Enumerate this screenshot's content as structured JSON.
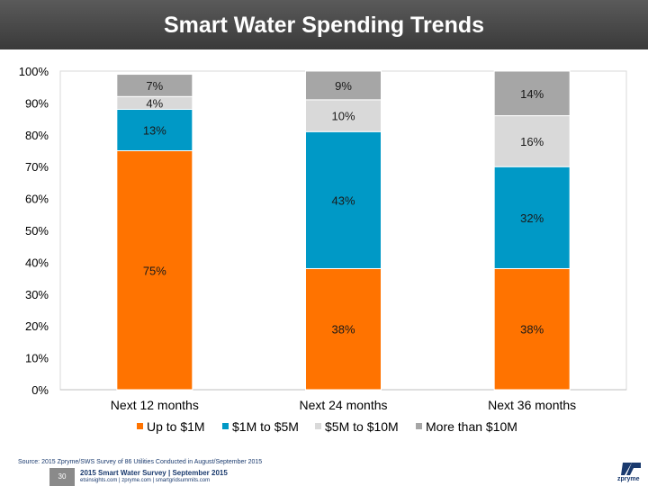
{
  "header": {
    "title": "Smart Water Spending Trends"
  },
  "chart_data": {
    "type": "bar",
    "stacked": true,
    "title": "Smart Water Spending Trends",
    "categories": [
      "Next 12 months",
      "Next 24 months",
      "Next 36 months"
    ],
    "series": [
      {
        "name": "Up to $1M",
        "color": "#FF7300",
        "values": [
          75,
          38,
          38
        ],
        "labels": [
          "75%",
          "38%",
          "38%"
        ]
      },
      {
        "name": "$1M to $5M",
        "color": "#0099C6",
        "values": [
          13,
          43,
          32
        ],
        "labels": [
          "13%",
          "43%",
          "32%"
        ]
      },
      {
        "name": "$5M to $10M",
        "color": "#D9D9D9",
        "values": [
          4,
          10,
          16
        ],
        "labels": [
          "4%",
          "10%",
          "16%"
        ]
      },
      {
        "name": "More than $10M",
        "color": "#A6A6A6",
        "values": [
          7,
          9,
          14
        ],
        "labels": [
          "7%",
          "9%",
          "14%"
        ]
      }
    ],
    "y_ticks": [
      "0%",
      "10%",
      "20%",
      "30%",
      "40%",
      "50%",
      "60%",
      "70%",
      "80%",
      "90%",
      "100%"
    ],
    "ylim": [
      0,
      100
    ],
    "legend_position": "bottom"
  },
  "source": "Source: 2015 Zpryme/SWS Survey of 86 Utilities Conducted in August/September 2015",
  "footer": {
    "page_number": "30",
    "survey": "2015 Smart Water Survey | September 2015",
    "links": "etsinsights.com | zpryme.com | smartgridsummits.com",
    "logo": "zpryme"
  }
}
